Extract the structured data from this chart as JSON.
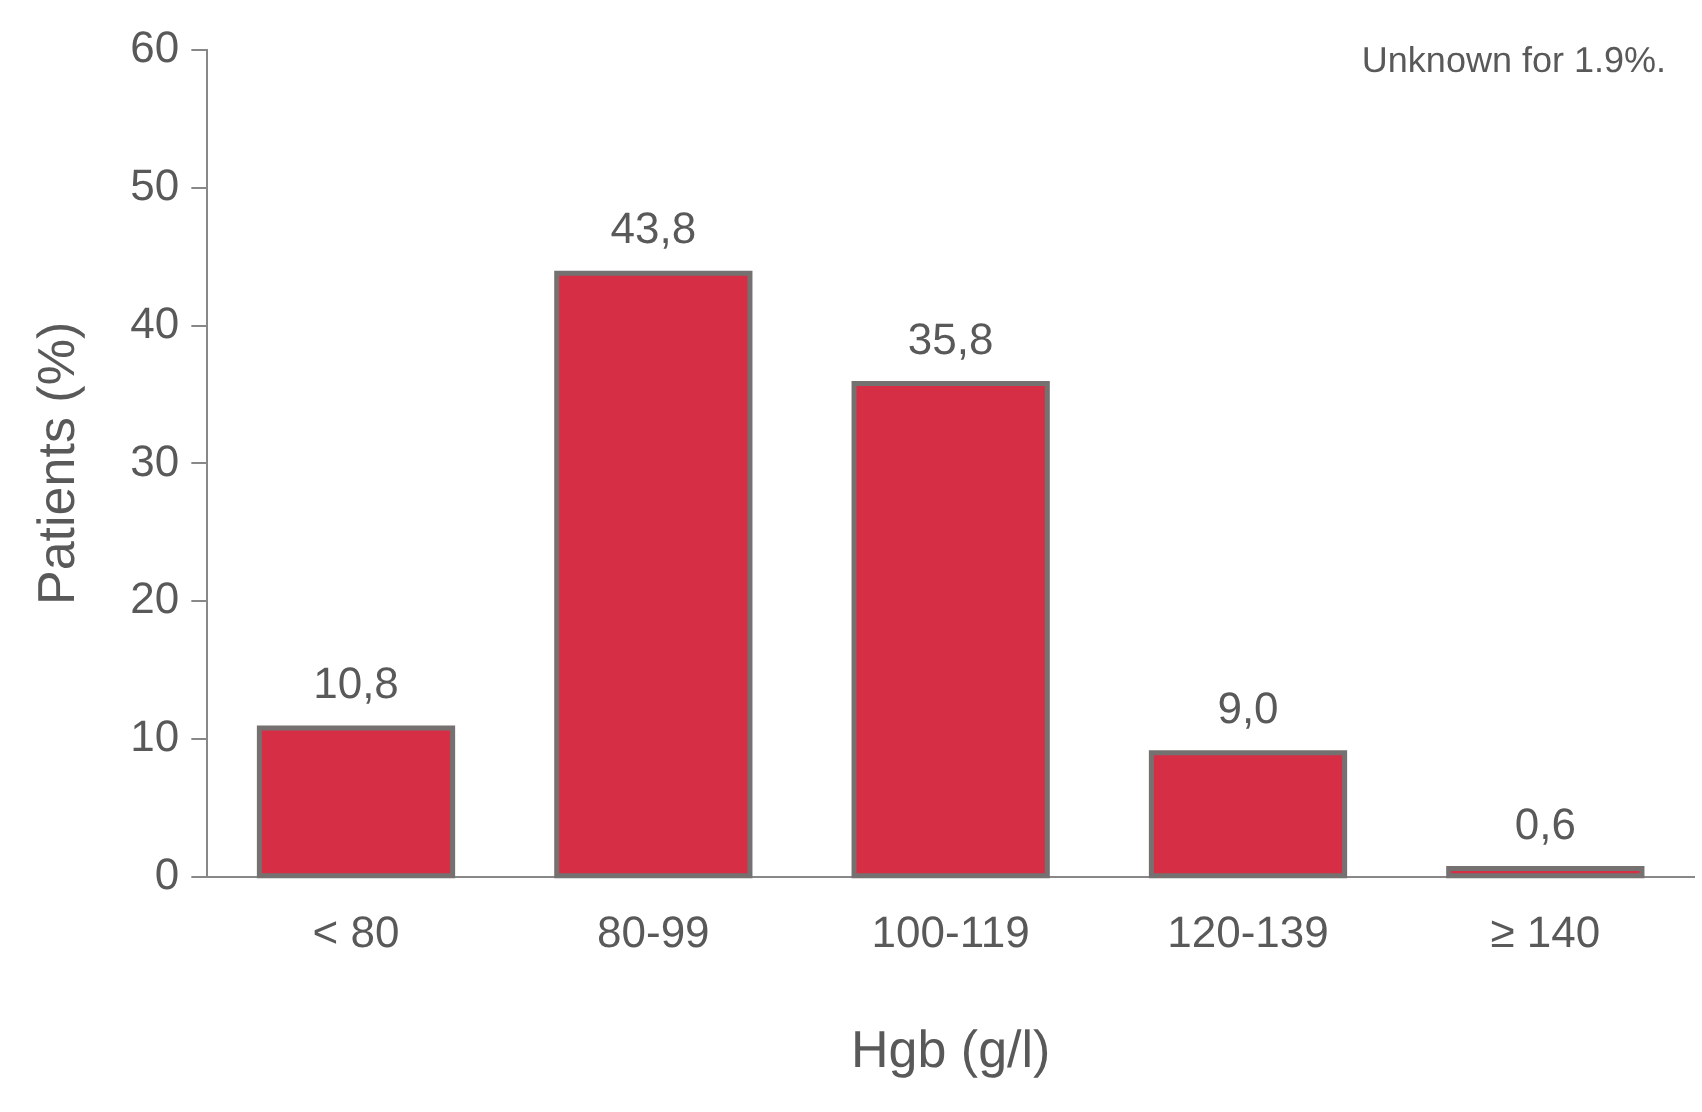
{
  "chart_data": {
    "type": "bar",
    "xlabel": "Hgb (g/l)",
    "ylabel": "Patients (%)",
    "categories": [
      "< 80",
      "80-99",
      "100-119",
      "120-139",
      "≥ 140"
    ],
    "values": [
      10.8,
      43.8,
      35.8,
      9.0,
      0.6
    ],
    "value_labels": [
      "10,8",
      "43,8",
      "35,8",
      "9,0",
      "0,6"
    ],
    "color": "#d62f45",
    "ylim": [
      0,
      60
    ],
    "yticks": [
      0,
      10,
      20,
      30,
      40,
      50,
      60
    ],
    "grid": false,
    "legend": false,
    "annotations": [
      "Unknown for 1.9%."
    ]
  }
}
